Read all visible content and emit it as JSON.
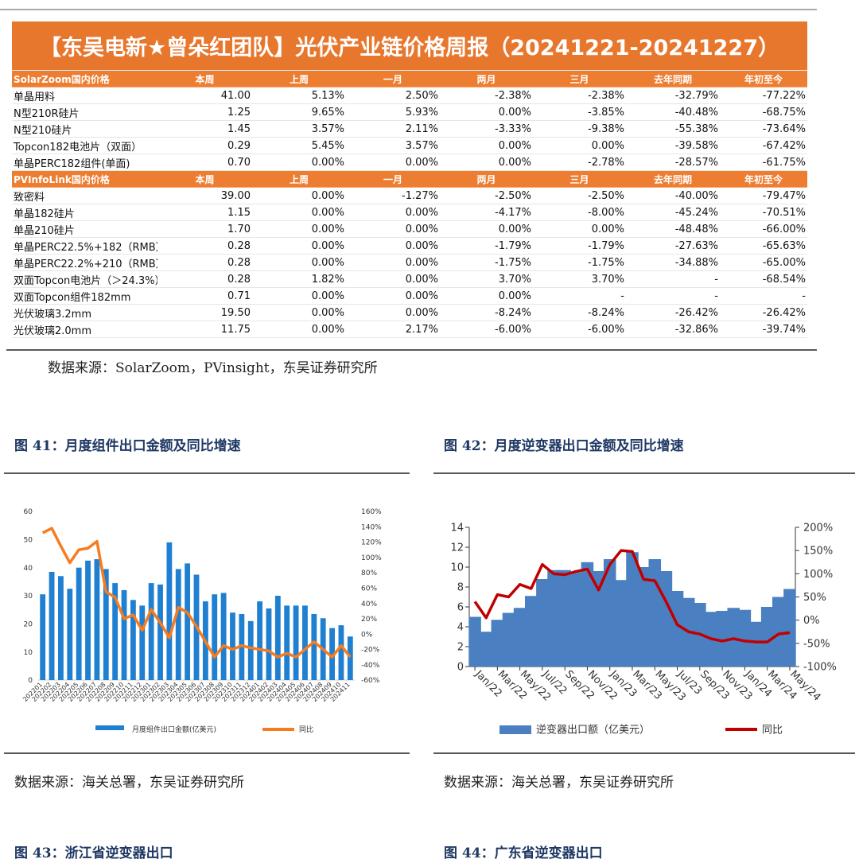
{
  "table": {
    "title": "【东吴电新★曾朵红团队】光伏产业链价格周报（20241221-20241227）",
    "sections": [
      {
        "header": [
          "SolarZoom国内价格",
          "本周",
          "上周",
          "一月",
          "两月",
          "三月",
          "去年同期",
          "年初至今"
        ],
        "rows": [
          [
            "单晶用料",
            "41.00",
            "5.13%",
            "2.50%",
            "-2.38%",
            "-2.38%",
            "-32.79%",
            "-77.22%"
          ],
          [
            "N型210R硅片",
            "1.25",
            "9.65%",
            "5.93%",
            "0.00%",
            "-3.85%",
            "-40.48%",
            "-68.75%"
          ],
          [
            "N型210硅片",
            "1.45",
            "3.57%",
            "2.11%",
            "-3.33%",
            "-9.38%",
            "-55.38%",
            "-73.64%"
          ],
          [
            "Topcon182电池片（双面）",
            "0.29",
            "5.45%",
            "3.57%",
            "0.00%",
            "0.00%",
            "-39.58%",
            "-67.42%"
          ],
          [
            "单晶PERC182组件(单面)",
            "0.70",
            "0.00%",
            "0.00%",
            "0.00%",
            "-2.78%",
            "-28.57%",
            "-61.75%"
          ]
        ]
      },
      {
        "header": [
          "PVInfoLink国内价格",
          "本周",
          "上周",
          "一月",
          "两月",
          "三月",
          "去年同期",
          "年初至今"
        ],
        "rows": [
          [
            "致密料",
            "39.00",
            "0.00%",
            "-1.27%",
            "-2.50%",
            "-2.50%",
            "-40.00%",
            "-79.47%"
          ],
          [
            "单晶182硅片",
            "1.15",
            "0.00%",
            "0.00%",
            "-4.17%",
            "-8.00%",
            "-45.24%",
            "-70.51%"
          ],
          [
            "单晶210硅片",
            "1.70",
            "0.00%",
            "0.00%",
            "0.00%",
            "0.00%",
            "-48.48%",
            "-66.00%"
          ],
          [
            "单晶PERC22.5%+182（RMB）",
            "0.28",
            "0.00%",
            "0.00%",
            "-1.79%",
            "-1.79%",
            "-27.63%",
            "-65.63%"
          ],
          [
            "单晶PERC22.2%+210（RMB）",
            "0.28",
            "0.00%",
            "0.00%",
            "-1.75%",
            "-1.75%",
            "-34.88%",
            "-65.00%"
          ],
          [
            "双面Topcon电池片（＞24.3%）",
            "0.28",
            "1.82%",
            "0.00%",
            "3.70%",
            "3.70%",
            "-",
            "-68.54%"
          ],
          [
            "双面Topcon组件182mm",
            "0.71",
            "0.00%",
            "0.00%",
            "0.00%",
            "-",
            "-",
            "-"
          ],
          [
            "光伏玻璃3.2mm",
            "19.50",
            "0.00%",
            "0.00%",
            "-8.24%",
            "-8.24%",
            "-26.42%",
            "-26.42%"
          ],
          [
            "光伏玻璃2.0mm",
            "11.75",
            "0.00%",
            "2.17%",
            "-6.00%",
            "-6.00%",
            "-32.86%",
            "-39.74%"
          ]
        ]
      }
    ],
    "source": "数据来源：SolarZoom，PVinsight，东吴证券研究所"
  },
  "chart_data": [
    {
      "type": "bar",
      "title": "图 41：月度组件出口金额及同比增速",
      "source": "数据来源：海关总署，东吴证券研究所",
      "categories": [
        "202201",
        "202202",
        "202203",
        "202204",
        "202205",
        "202206",
        "202207",
        "202208",
        "202209",
        "202210",
        "202211",
        "202212",
        "202301",
        "202302",
        "202303",
        "202304",
        "202305",
        "202306",
        "202307",
        "202308",
        "202309",
        "202310",
        "202311",
        "202312",
        "202401",
        "202402",
        "202403",
        "202404",
        "202405",
        "202406",
        "202407",
        "202408",
        "202409",
        "202410",
        "202411"
      ],
      "series": [
        {
          "name": "月度组件出口金额(亿美元)",
          "type": "bar",
          "color": "#1f7fd0",
          "values": [
            30.5,
            38.5,
            37,
            32.5,
            40,
            42.5,
            43,
            39.5,
            34.5,
            32,
            28.5,
            26.5,
            34.5,
            34,
            49,
            39.5,
            41.5,
            37.5,
            28,
            30.5,
            31,
            24,
            23.5,
            21,
            28,
            25.5,
            30,
            26.5,
            26.5,
            26.5,
            23.5,
            22,
            18.5,
            19.5,
            15.5
          ]
        },
        {
          "name": "同比",
          "type": "line",
          "axis": "y2",
          "color": "#f57c20",
          "values": [
            132,
            138,
            115,
            93,
            110,
            112,
            121,
            55,
            48,
            20,
            25,
            5,
            32,
            15,
            -5,
            35,
            28,
            10,
            -10,
            -30,
            -15,
            -20,
            -15,
            -18,
            -20,
            -22,
            -30,
            -25,
            -30,
            -20,
            -10,
            -20,
            -30,
            -15,
            -30
          ]
        }
      ],
      "ylim": [
        0,
        60
      ],
      "yticks": [
        0,
        10,
        20,
        30,
        40,
        50,
        60
      ],
      "y2lim": [
        -60,
        160
      ],
      "y2ticks": [
        {
          "value": -60,
          "label": "-60%"
        },
        {
          "value": -40,
          "label": "-40%"
        },
        {
          "value": -20,
          "label": "-20%"
        },
        {
          "value": 0,
          "label": "0%"
        },
        {
          "value": 20,
          "label": "20%"
        },
        {
          "value": 40,
          "label": "40%"
        },
        {
          "value": 60,
          "label": "60%"
        },
        {
          "value": 80,
          "label": "80%"
        },
        {
          "value": 100,
          "label": "100%"
        },
        {
          "value": 120,
          "label": "120%"
        },
        {
          "value": 140,
          "label": "140%"
        },
        {
          "value": 160,
          "label": "160%"
        }
      ]
    },
    {
      "type": "bar",
      "title": "图 42：月度逆变器出口金额及同比增速",
      "source": "数据来源：海关总署，东吴证券研究所",
      "categories": [
        "Jan/22",
        null,
        "Mar/22",
        null,
        "May/22",
        null,
        "Jul/22",
        null,
        "Sep/22",
        null,
        "Nov/22",
        null,
        "Jan/23",
        null,
        "Mar/23",
        null,
        "May/23",
        null,
        "Jul/23",
        null,
        "Sep/23",
        null,
        "Nov/23",
        null,
        "Jan/24",
        null,
        "Mar/24",
        null,
        "May/24"
      ],
      "series": [
        {
          "name": "逆变器出口额（亿美元）",
          "type": "bar",
          "color": "#4a7fc1",
          "values": [
            5.0,
            3.5,
            4.7,
            5.4,
            5.9,
            7.1,
            8.8,
            9.7,
            9.7,
            9.5,
            10.5,
            9.6,
            10.8,
            8.7,
            11.5,
            10.0,
            10.8,
            9.6,
            7.6,
            6.9,
            6.4,
            5.5,
            5.6,
            5.9,
            5.7,
            4.5,
            6.0,
            7.0,
            7.8
          ]
        },
        {
          "name": "同比",
          "type": "line",
          "axis": "y2",
          "color": "#c00000",
          "values": [
            40,
            5,
            55,
            50,
            77,
            68,
            120,
            100,
            98,
            105,
            110,
            65,
            120,
            150,
            148,
            88,
            85,
            40,
            -10,
            -25,
            -30,
            -40,
            -45,
            -40,
            -45,
            -47,
            -47,
            -30,
            -27
          ]
        }
      ],
      "ylim": [
        0,
        14
      ],
      "yticks": [
        0,
        2,
        4,
        6,
        8,
        10,
        12,
        14
      ],
      "y2lim": [
        -100,
        200
      ],
      "y2ticks": [
        {
          "value": -100,
          "label": "-100%"
        },
        {
          "value": -50,
          "label": "-50%"
        },
        {
          "value": 0,
          "label": "0%"
        },
        {
          "value": 50,
          "label": "50%"
        },
        {
          "value": 100,
          "label": "100%"
        },
        {
          "value": 150,
          "label": "150%"
        },
        {
          "value": 200,
          "label": "200%"
        }
      ]
    }
  ],
  "figures_below": [
    "图 43：浙江省逆变器出口",
    "图 44：广东省逆变器出口"
  ]
}
